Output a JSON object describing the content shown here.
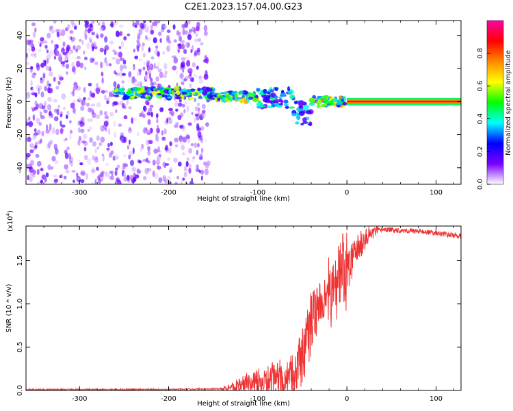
{
  "title": "C2E1.2023.157.04.00.G23",
  "chart_data": [
    {
      "type": "heatmap",
      "xlabel": "Height of straight line (km)",
      "ylabel": "Frequency (Hz)",
      "xlim": [
        -360,
        128
      ],
      "ylim": [
        -50,
        49
      ],
      "x_ticks": [
        -300,
        -200,
        -100,
        0,
        100
      ],
      "y_ticks": [
        -40,
        -20,
        0,
        20,
        40
      ],
      "colorbar": {
        "label": "Normalized spectral amplitude",
        "range": [
          0.0,
          1.0
        ],
        "ticks": [
          0.0,
          0.2,
          0.4,
          0.6,
          0.8
        ],
        "colormap": [
          "#ffffff",
          "#7b00ff",
          "#0000ff",
          "#00ffff",
          "#00ff00",
          "#ffff00",
          "#ff8800",
          "#ff0000",
          "#ff00aa"
        ]
      },
      "regions": [
        {
          "x_range": [
            -360,
            -155
          ],
          "y_range": [
            -50,
            49
          ],
          "amplitude": 0.1
        },
        {
          "x_range": [
            -260,
            -150
          ],
          "y_range": [
            2,
            8
          ],
          "amplitude": 0.4
        },
        {
          "x_range": [
            -150,
            -100
          ],
          "y_range": [
            0,
            6
          ],
          "amplitude": 0.45
        },
        {
          "x_range": [
            -100,
            -60
          ],
          "y_range": [
            -4,
            8
          ],
          "amplitude": 0.3
        },
        {
          "x_range": [
            -60,
            -40
          ],
          "y_range": [
            -14,
            0
          ],
          "amplitude": 0.25
        },
        {
          "x_range": [
            -40,
            0
          ],
          "y_range": [
            -3,
            3
          ],
          "amplitude": 0.5
        },
        {
          "x_range": [
            0,
            128
          ],
          "y_range": [
            -1,
            1
          ],
          "amplitude": 0.9
        }
      ]
    },
    {
      "type": "line",
      "xlabel": "Height of straight line (km)",
      "ylabel": "SNR (10 * v/v)",
      "y_multiplier": "(x10^4)",
      "y_multiplier_base": "(x10",
      "y_multiplier_exp": "4",
      "y_multiplier_close": ")",
      "xlim": [
        -360,
        128
      ],
      "ylim": [
        0.0,
        1.9
      ],
      "x_ticks": [
        -300,
        -200,
        -100,
        0,
        100
      ],
      "y_ticks": [
        "0.0",
        "0.5",
        "1.0",
        "1.5"
      ],
      "line_color": "#ee3333",
      "x": [
        -360,
        -300,
        -200,
        -140,
        -120,
        -100,
        -80,
        -60,
        -50,
        -40,
        -30,
        -20,
        -10,
        0,
        10,
        20,
        30,
        40,
        60,
        80,
        100,
        128
      ],
      "y": [
        0.01,
        0.01,
        0.01,
        0.02,
        0.06,
        0.1,
        0.12,
        0.18,
        0.4,
        0.8,
        0.9,
        1.1,
        1.25,
        1.35,
        1.6,
        1.75,
        1.83,
        1.86,
        1.85,
        1.84,
        1.82,
        1.78
      ]
    }
  ]
}
